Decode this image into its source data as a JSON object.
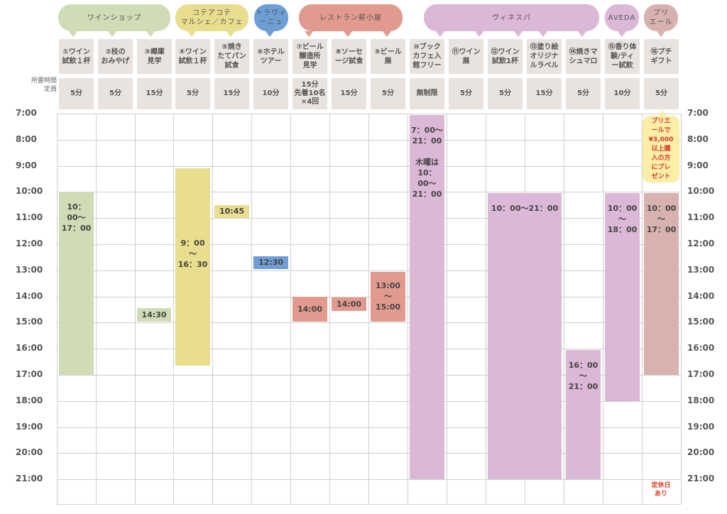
{
  "groups": [
    {
      "id": "wine-shop",
      "label": "ワインショップ",
      "color": "#cfdcb6"
    },
    {
      "id": "cotea",
      "label": "コテアコテ\nマルシェ／カフェ",
      "color": "#e9de8e"
    },
    {
      "id": "travinu",
      "label": "トラヴィ\nーニュ",
      "color": "#6e9ed6"
    },
    {
      "id": "restaurant",
      "label": "レストラン薪小屋",
      "color": "#e29a8e"
    },
    {
      "id": "vinesba",
      "label": "ヴィネスパ",
      "color": "#dcb8d7"
    },
    {
      "id": "aveda",
      "label": "AVEDA",
      "color": "#dcb8d7"
    },
    {
      "id": "priere",
      "label": "プリ\nエール",
      "color": "#d8b2ae"
    }
  ],
  "header_labels": {
    "required_time": "所要時間\n定員"
  },
  "activities": [
    "①ワイン\n試飲１杯",
    "②枝の\nおみやげ",
    "③樽庫\n見学",
    "④ワイン\n試飲１杯",
    "⑤焼き\nたてパン\n試食",
    "⑥ホテル\nツアー",
    "⑦ビール\n醸造所\n見学",
    "⑧ソーセ\nージ試食",
    "⑨ビール\n展",
    "⑩ブック\nカフェ入\n館フリー",
    "⑪ワイン\n展",
    "⑫ワイン\n試飲1杯",
    "⑬塗り絵\nオリジナ\nルラベル",
    "⑭焼きマ\nシュマロ",
    "⑮香り体\n験/ティ\nー試飲",
    "⑯プチ\nギフト"
  ],
  "durations": [
    "5分",
    "5分",
    "15分",
    "5分",
    "15分",
    "10分",
    "15分\n先着10名\n×4回",
    "15分",
    "5分",
    "無制限",
    "5分",
    "5分",
    "15分",
    "5分",
    "10分",
    "5分"
  ],
  "times": [
    "7:00",
    "8:00",
    "9:00",
    "10:00",
    "11:00",
    "12:00",
    "13:00",
    "14:00",
    "15:00",
    "16:00",
    "17:00",
    "18:00",
    "19:00",
    "20:00",
    "21:00"
  ],
  "schedule": [
    {
      "col": 0,
      "start": 10.0,
      "end": 17.0,
      "label": "10：00〜17：00",
      "color": "#cfdcb6",
      "type": "block"
    },
    {
      "col": 2,
      "start": 14.45,
      "end": 14.95,
      "label": "14:30",
      "color": "#cfdcb6",
      "type": "pill"
    },
    {
      "col": 3,
      "start": 9.1,
      "end": 16.65,
      "label": "9：00\n〜\n16：30",
      "color": "#e9de8e",
      "type": "block",
      "center": true
    },
    {
      "col": 4,
      "start": 10.5,
      "end": 11.0,
      "label": "10:45",
      "color": "#e9de8e",
      "type": "pill"
    },
    {
      "col": 5,
      "start": 12.45,
      "end": 12.95,
      "label": "12:30",
      "color": "#6e9ed6",
      "type": "pill"
    },
    {
      "col": 6,
      "start": 14.0,
      "end": 14.95,
      "label": "14:00",
      "color": "#e29a8e",
      "type": "pill"
    },
    {
      "col": 7,
      "start": 14.05,
      "end": 14.55,
      "label": "14:00",
      "color": "#e29a8e",
      "type": "pill"
    },
    {
      "col": 8,
      "start": 13.05,
      "end": 14.95,
      "label": "13:00\n〜\n15:00",
      "color": "#e29a8e",
      "type": "pill"
    },
    {
      "col": 9,
      "start": 7.05,
      "end": 21.0,
      "label": "7：00〜21：00\n\n木曜は\n10：00〜21：00",
      "color": "#dcb8d7",
      "type": "block"
    },
    {
      "col": 11,
      "start": 10.05,
      "end": 21.0,
      "label": "10：00〜21：00",
      "color": "#dcb8d7",
      "type": "block",
      "span": 2
    },
    {
      "col": 13,
      "start": 16.05,
      "end": 21.0,
      "label": "16：00\n〜\n21：00",
      "color": "#dcb8d7",
      "type": "block"
    },
    {
      "col": 14,
      "start": 10.05,
      "end": 18.0,
      "label": "10：00\n〜\n18：00",
      "color": "#dcb8d7",
      "type": "block"
    },
    {
      "col": 15,
      "start": 10.05,
      "end": 17.0,
      "label": "10：00\n〜\n17：00",
      "color": "#d8b2ae",
      "type": "block"
    }
  ],
  "note": "プリエ\nールで\n¥3,000\n以上購\n入の方\nにプレ\nゼント",
  "closed_note": "定休日\nあり"
}
